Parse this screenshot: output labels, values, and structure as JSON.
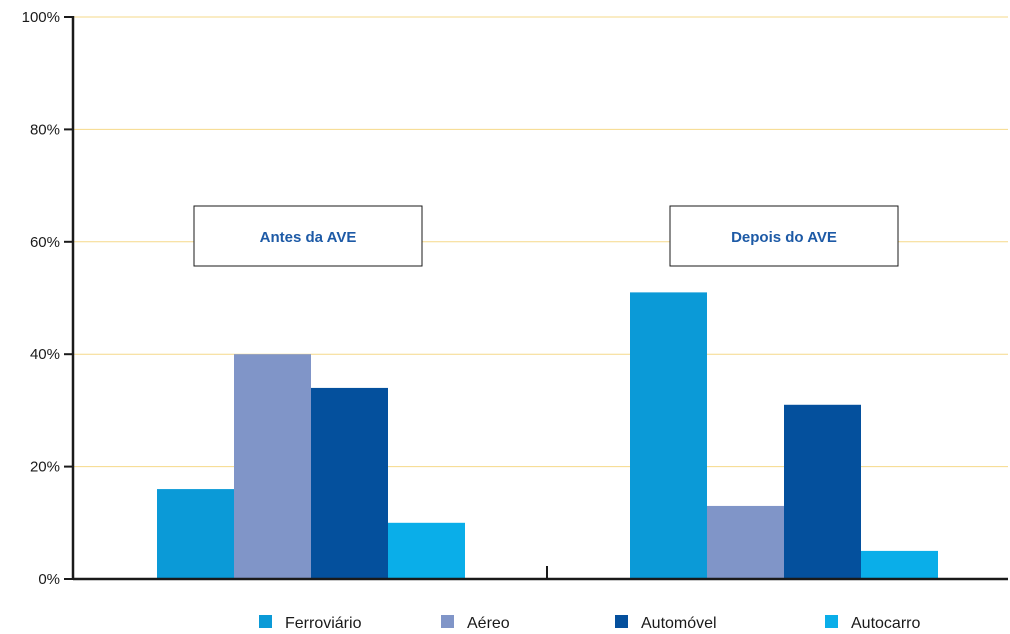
{
  "chart_data": {
    "type": "bar",
    "categories": [
      "Antes da AVE",
      "Depois do AVE"
    ],
    "series": [
      {
        "name": "Ferroviário",
        "color": "#0b9ad7",
        "values": [
          16,
          51
        ]
      },
      {
        "name": "Aéreo",
        "color": "#8095c8",
        "values": [
          40,
          13
        ]
      },
      {
        "name": "Automóvel",
        "color": "#04509d",
        "values": [
          34,
          31
        ]
      },
      {
        "name": "Autocarro",
        "color": "#0aaee9",
        "values": [
          10,
          5
        ]
      }
    ],
    "yticks": [
      "0%",
      "20%",
      "40%",
      "60%",
      "80%",
      "100%"
    ],
    "ylim": [
      0,
      100
    ],
    "grid": true,
    "gridline_color": "#f6d98a",
    "legend_position": "bottom",
    "title": "",
    "xlabel": "",
    "ylabel": ""
  }
}
